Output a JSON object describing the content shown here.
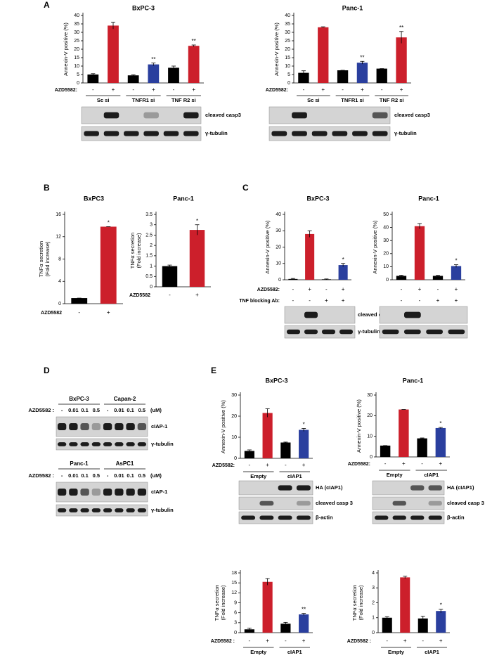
{
  "panels": [
    "A",
    "B",
    "C",
    "D",
    "E"
  ],
  "chart_data": [
    {
      "type": "bar",
      "title": "BxPC-3",
      "y_label": [
        "Annexin-V positive (%)"
      ],
      "ylim": [
        0,
        40
      ],
      "yticks": [
        0,
        5,
        10,
        15,
        20,
        25,
        30,
        35,
        40
      ],
      "categories": [
        "-",
        "+",
        "-",
        "+",
        "-",
        "+"
      ],
      "values": [
        5,
        34,
        4.5,
        11,
        9,
        22
      ],
      "errors": [
        0.5,
        2,
        0.3,
        0.8,
        1,
        0.5
      ],
      "colors": [
        "#000000",
        "#cc1f2b",
        "#000000",
        "#2a3f9e",
        "#000000",
        "#cc1f2b"
      ],
      "annotations": [
        null,
        null,
        null,
        "**",
        null,
        "**"
      ],
      "row_label": "AZD5582:",
      "groups": [
        "Sc si",
        "TNFR1 si",
        "TNF R2 si"
      ]
    },
    {
      "type": "bar",
      "title": "Panc-1",
      "y_label": [
        "Annexin-V positive (%)"
      ],
      "ylim": [
        0,
        40
      ],
      "yticks": [
        0,
        5,
        10,
        15,
        20,
        25,
        30,
        35,
        40
      ],
      "categories": [
        "-",
        "+",
        "-",
        "+",
        "-",
        "+"
      ],
      "values": [
        6,
        33,
        7.5,
        12,
        8.5,
        27
      ],
      "errors": [
        1.2,
        0.3,
        0,
        0.8,
        0,
        3.5
      ],
      "colors": [
        "#000000",
        "#cc1f2b",
        "#000000",
        "#2a3f9e",
        "#000000",
        "#cc1f2b"
      ],
      "annotations": [
        null,
        null,
        null,
        "**",
        null,
        "**"
      ],
      "row_label": "AZD5582:",
      "groups": [
        "Sc si",
        "TNFR1 si",
        "TNF R2 si"
      ]
    },
    {
      "type": "bar",
      "title": "BxPC3",
      "y_label": [
        "TNFα secretion",
        "(Fold increase)"
      ],
      "ylim": [
        0,
        16
      ],
      "yticks": [
        0,
        4,
        8,
        12,
        16
      ],
      "categories": [
        "-",
        "+"
      ],
      "values": [
        1,
        13.8
      ],
      "errors": [
        0,
        0
      ],
      "colors": [
        "#000000",
        "#cc1f2b"
      ],
      "annotations": [
        null,
        "*"
      ],
      "row_label": "AZD5582"
    },
    {
      "type": "bar",
      "title": "Panc-1",
      "y_label": [
        "TNFα secretion",
        "(Fold increase)"
      ],
      "ylim": [
        0,
        3.5
      ],
      "yticks": [
        0,
        0.5,
        1,
        1.5,
        2,
        2.5,
        3,
        3.5
      ],
      "categories": [
        "-",
        "+"
      ],
      "values": [
        1,
        2.75
      ],
      "errors": [
        0.05,
        0.25
      ],
      "colors": [
        "#000000",
        "#cc1f2b"
      ],
      "annotations": [
        null,
        "*"
      ],
      "row_label": "AZD5582"
    },
    {
      "type": "bar",
      "title": "BxPC-3",
      "y_label": [
        "Annexin-V positive (%)"
      ],
      "ylim": [
        0,
        40
      ],
      "yticks": [
        0,
        10,
        20,
        30,
        40
      ],
      "categories": [
        "-",
        "+",
        "-",
        "+"
      ],
      "values": [
        0.5,
        28,
        0.3,
        9
      ],
      "errors": [
        0.3,
        2,
        0.2,
        1
      ],
      "colors": [
        "#000000",
        "#cc1f2b",
        "#000000",
        "#2a3f9e"
      ],
      "annotations": [
        null,
        null,
        null,
        "*"
      ],
      "row_label": "AZD5582:",
      "row2_label": "TNF blocking Ab:",
      "row2": [
        "-",
        "-",
        "+",
        "+"
      ]
    },
    {
      "type": "bar",
      "title": "Panc-1",
      "y_label": [
        "Annexin-V positive (%)"
      ],
      "ylim": [
        0,
        50
      ],
      "yticks": [
        0,
        10,
        20,
        30,
        40,
        50
      ],
      "categories": [
        "-",
        "+",
        "-",
        "+"
      ],
      "values": [
        3,
        41,
        3,
        10.5
      ],
      "errors": [
        0.5,
        2,
        0.4,
        1
      ],
      "colors": [
        "#000000",
        "#cc1f2b",
        "#000000",
        "#2a3f9e"
      ],
      "annotations": [
        null,
        null,
        null,
        "*"
      ],
      "row2": [
        "-",
        "-",
        "+",
        "+"
      ]
    },
    {
      "type": "bar",
      "title": "BxPC-3",
      "y_label": [
        "Annexin-V positive (%)"
      ],
      "ylim": [
        0,
        30
      ],
      "yticks": [
        0,
        10,
        20,
        30
      ],
      "categories": [
        "-",
        "+",
        "-",
        "+"
      ],
      "values": [
        3.5,
        21.5,
        7.5,
        13.5
      ],
      "errors": [
        0.5,
        2,
        0.2,
        0.7
      ],
      "colors": [
        "#000000",
        "#cc1f2b",
        "#000000",
        "#2a3f9e"
      ],
      "annotations": [
        null,
        null,
        null,
        "*"
      ],
      "row_label": "AZD5582:",
      "groups": [
        "Empty",
        "cIAP1"
      ]
    },
    {
      "type": "bar",
      "title": "Panc-1",
      "y_label": [
        "Annexin-V positive (%)"
      ],
      "ylim": [
        0,
        30
      ],
      "yticks": [
        0,
        10,
        20,
        30
      ],
      "categories": [
        "-",
        "+",
        "-",
        "+"
      ],
      "values": [
        5.5,
        23,
        9,
        14
      ],
      "errors": [
        0,
        0,
        0.2,
        0.3
      ],
      "colors": [
        "#000000",
        "#cc1f2b",
        "#000000",
        "#2a3f9e"
      ],
      "annotations": [
        null,
        null,
        null,
        "*"
      ],
      "row_label": "AZD5582:",
      "groups": [
        "Empty",
        "cIAP1"
      ]
    },
    {
      "type": "bar",
      "y_label": [
        "TNFα secretion",
        "(Fold increase)"
      ],
      "ylim": [
        0,
        18
      ],
      "yticks": [
        0,
        3,
        6,
        9,
        12,
        15,
        18
      ],
      "categories": [
        "-",
        "+",
        "-",
        "+"
      ],
      "values": [
        1,
        15.3,
        2.7,
        5.5
      ],
      "errors": [
        0.4,
        1,
        0.4,
        0.3
      ],
      "colors": [
        "#000000",
        "#cc1f2b",
        "#000000",
        "#2a3f9e"
      ],
      "annotations": [
        null,
        null,
        null,
        "**"
      ],
      "row_label": "AZD5582 :",
      "groups": [
        "Empty",
        "cIAP1"
      ]
    },
    {
      "type": "bar",
      "y_label": [
        "TNFα secretion",
        "(Fold increase)"
      ],
      "ylim": [
        0,
        4
      ],
      "yticks": [
        0,
        1,
        2,
        3,
        4
      ],
      "categories": [
        "-",
        "+",
        "-",
        "+"
      ],
      "values": [
        1,
        3.7,
        0.95,
        1.45
      ],
      "errors": [
        0.07,
        0.08,
        0.15,
        0.12
      ],
      "colors": [
        "#000000",
        "#cc1f2b",
        "#000000",
        "#2a3f9e"
      ],
      "annotations": [
        null,
        null,
        null,
        "*"
      ],
      "row_label": "AZD5582 :",
      "groups": [
        "Empty",
        "cIAP1"
      ]
    }
  ],
  "blots": [
    {
      "labels": [
        "cleaved casp3",
        "γ-tubulin"
      ]
    },
    {
      "labels": [
        "cleaved casp3",
        "γ-tubulin"
      ]
    },
    {
      "labels": [
        "cleaved casp 3",
        "γ-tubulin"
      ]
    },
    {
      "labels": []
    },
    {
      "headers": [
        "BxPC-3",
        "Capan-2"
      ],
      "row_label": "AZD5582 :",
      "lanes": [
        "-",
        "0.01",
        "0.1",
        "0.5",
        "-",
        "0.01",
        "0.1",
        "0.5"
      ],
      "unit": "(uM)",
      "labels": [
        "cIAP-1",
        "γ-tubulin"
      ]
    },
    {
      "headers": [
        "Panc-1",
        "AsPC1"
      ],
      "row_label": "AZD5582 :",
      "lanes": [
        "-",
        "0.01",
        "0.1",
        "0.5",
        "-",
        "0.01",
        "0.1",
        "0.5"
      ],
      "unit": "(uM)",
      "labels": [
        "cIAP-1",
        "γ-tubulin"
      ]
    },
    {
      "labels": [
        "HA (cIAP1)",
        "cleaved casp 3",
        "β-actin"
      ]
    },
    {
      "labels": [
        "HA (cIAP1)",
        "cleaved casp 3",
        "β-actin"
      ]
    }
  ]
}
